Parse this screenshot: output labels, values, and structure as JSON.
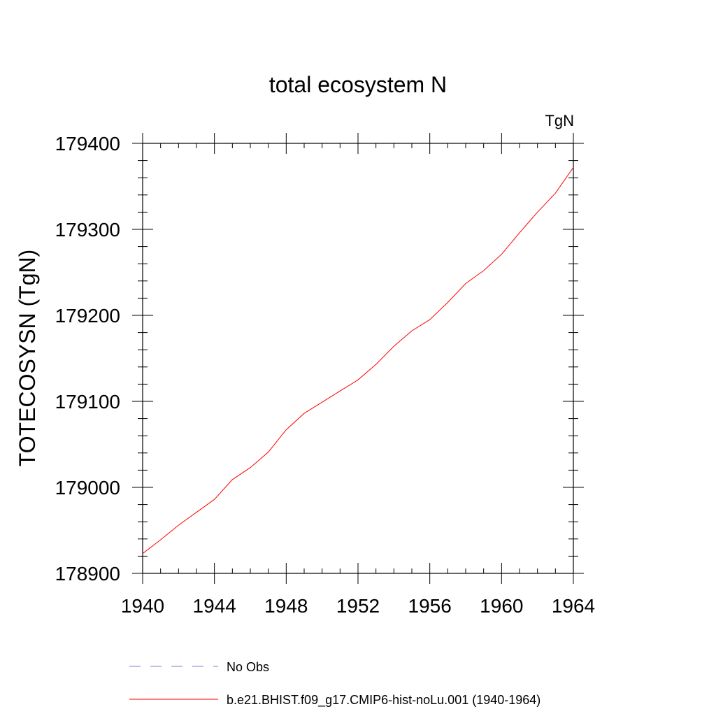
{
  "chart_data": {
    "type": "line",
    "title": "total ecosystem N",
    "units_label": "TgN",
    "ylabel": "TOTECOSYSN  (TgN)",
    "xlabel": "",
    "xlim": [
      1940,
      1964
    ],
    "ylim": [
      178900,
      179400
    ],
    "xticks": [
      1940,
      1944,
      1948,
      1952,
      1956,
      1960,
      1964
    ],
    "yticks": [
      178900,
      179000,
      179100,
      179200,
      179300,
      179400
    ],
    "grid": false,
    "legend_position": "bottom",
    "series": [
      {
        "name": "b.e21.BHIST.f09_g17.CMIP6-hist-noLu.001 (1940-1964)",
        "color": "#ff0000",
        "dash": "solid",
        "x": [
          1940,
          1941,
          1942,
          1943,
          1944,
          1945,
          1946,
          1947,
          1948,
          1949,
          1950,
          1951,
          1952,
          1953,
          1954,
          1955,
          1956,
          1957,
          1958,
          1959,
          1960,
          1961,
          1962,
          1963,
          1964
        ],
        "y": [
          178923,
          178939,
          178956,
          178971,
          178986,
          179009,
          179023,
          179041,
          179067,
          179086,
          179099,
          179112,
          179125,
          179143,
          179164,
          179182,
          179195,
          179215,
          179237,
          179252,
          179271,
          179296,
          179320,
          179342,
          179372
        ]
      }
    ],
    "legend": [
      {
        "label": "No Obs",
        "color": "#8080cc",
        "dash": "dashed"
      },
      {
        "label": "b.e21.BHIST.f09_g17.CMIP6-hist-noLu.001 (1940-1964)",
        "color": "#ff0000",
        "dash": "solid"
      }
    ]
  }
}
